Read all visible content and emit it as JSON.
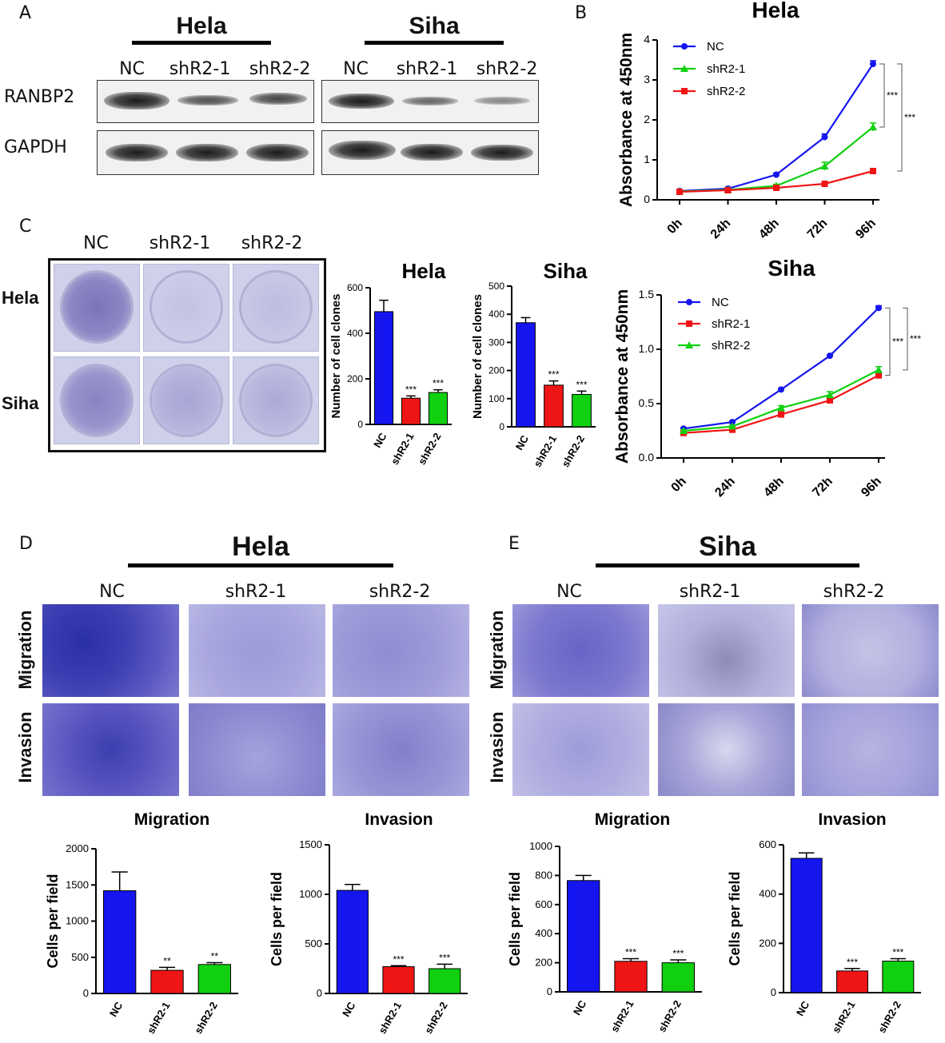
{
  "panel_letters": {
    "a": "A",
    "b": "B",
    "c": "C",
    "d": "D",
    "e": "E"
  },
  "blot": {
    "hela_title": "Hela",
    "siha_title": "Siha",
    "lanes_hela": [
      "NC",
      "shR2-1",
      "shR2-2"
    ],
    "lanes_siha": [
      "NC",
      "shR2-1",
      "shR2-2"
    ],
    "rows": [
      "RANBP2",
      "GAPDH"
    ]
  },
  "clone": {
    "cols": [
      "NC",
      "shR2-1",
      "shR2-2"
    ],
    "rows": [
      "Hela",
      "Siha"
    ]
  },
  "transwell": {
    "hela_title": "Hela",
    "siha_title": "Siha",
    "cols_hela": [
      "NC",
      "shR2-1",
      "shR2-2"
    ],
    "cols_siha": [
      "NC",
      "shR2-1",
      "shR2-2"
    ],
    "rows": [
      "Migration",
      "Invasion"
    ]
  },
  "colors": {
    "nc": "#1515f0",
    "red": "#f01515",
    "green": "#10d010"
  },
  "chart_data": [
    {
      "id": "hela-growth",
      "type": "line",
      "title": "Hela",
      "xlabel": "",
      "ylabel": "Absorbance at 450nm",
      "categories": [
        "0h",
        "24h",
        "48h",
        "72h",
        "96h"
      ],
      "ylim": [
        0,
        4
      ],
      "yticks": [
        0,
        1,
        2,
        3,
        4
      ],
      "series": [
        {
          "name": "NC",
          "color": "#1515f0",
          "marker": "circle",
          "values": [
            0.22,
            0.28,
            0.63,
            1.57,
            3.4
          ],
          "err": [
            0.03,
            0.03,
            0.04,
            0.08,
            0.08
          ]
        },
        {
          "name": "shR2-1",
          "color": "#10d010",
          "marker": "triangle",
          "values": [
            0.21,
            0.25,
            0.35,
            0.84,
            1.82
          ],
          "err": [
            0.03,
            0.03,
            0.04,
            0.1,
            0.1
          ]
        },
        {
          "name": "shR2-2",
          "color": "#f01515",
          "marker": "square",
          "values": [
            0.2,
            0.24,
            0.3,
            0.4,
            0.72
          ],
          "err": [
            0.03,
            0.03,
            0.03,
            0.04,
            0.05
          ]
        }
      ],
      "significance": [
        "***",
        "***"
      ]
    },
    {
      "id": "siha-growth",
      "type": "line",
      "title": "Siha",
      "xlabel": "",
      "ylabel": "Absorbance at 450nm",
      "categories": [
        "0h",
        "24h",
        "48h",
        "72h",
        "96h"
      ],
      "ylim": [
        0,
        1.5
      ],
      "yticks": [
        "0.0",
        "0.5",
        "1.0",
        "1.5"
      ],
      "series": [
        {
          "name": "NC",
          "color": "#1515f0",
          "marker": "circle",
          "values": [
            0.27,
            0.33,
            0.63,
            0.94,
            1.38
          ],
          "err": [
            0.01,
            0.01,
            0.01,
            0.01,
            0.02
          ]
        },
        {
          "name": "shR2-1",
          "color": "#f01515",
          "marker": "square",
          "values": [
            0.23,
            0.26,
            0.4,
            0.53,
            0.76
          ],
          "err": [
            0.01,
            0.01,
            0.02,
            0.02,
            0.03
          ]
        },
        {
          "name": "shR2-2",
          "color": "#10d010",
          "marker": "triangle",
          "values": [
            0.25,
            0.29,
            0.46,
            0.58,
            0.81
          ],
          "err": [
            0.01,
            0.01,
            0.02,
            0.03,
            0.03
          ]
        }
      ],
      "significance": [
        "***",
        "***"
      ]
    },
    {
      "id": "hela-clones",
      "type": "bar",
      "title": "Hela",
      "ylabel": "Number of cell clones",
      "categories": [
        "NC",
        "shR2-1",
        "shR2-2"
      ],
      "values": [
        495,
        115,
        140
      ],
      "err": [
        50,
        10,
        12
      ],
      "ylim": [
        0,
        600
      ],
      "yticks": [
        0,
        200,
        400,
        600
      ],
      "stars": [
        "",
        "***",
        "***"
      ]
    },
    {
      "id": "siha-clones",
      "type": "bar",
      "title": "Siha",
      "ylabel": "Number of cell clones",
      "categories": [
        "NC",
        "shR2-1",
        "shR2-2"
      ],
      "values": [
        370,
        148,
        115
      ],
      "err": [
        18,
        15,
        12
      ],
      "ylim": [
        0,
        500
      ],
      "yticks": [
        0,
        100,
        200,
        300,
        400,
        500
      ],
      "stars": [
        "",
        "***",
        "***"
      ]
    },
    {
      "id": "hela-migration",
      "type": "bar",
      "title": "Migration",
      "ylabel": "Cells per field",
      "categories": [
        "NC",
        "shR2-1",
        "shR2-2"
      ],
      "values": [
        1420,
        320,
        400
      ],
      "err": [
        260,
        40,
        25
      ],
      "ylim": [
        0,
        2000
      ],
      "yticks": [
        0,
        500,
        1000,
        1500,
        2000
      ],
      "stars": [
        "",
        "**",
        "**"
      ]
    },
    {
      "id": "hela-invasion",
      "type": "bar",
      "title": "Invasion",
      "ylabel": "Cells per field",
      "categories": [
        "NC",
        "shR2-1",
        "shR2-2"
      ],
      "values": [
        1040,
        270,
        250
      ],
      "err": [
        60,
        10,
        45
      ],
      "ylim": [
        0,
        1500
      ],
      "yticks": [
        0,
        500,
        1000,
        1500
      ],
      "stars": [
        "",
        "***",
        "***"
      ]
    },
    {
      "id": "siha-migration",
      "type": "bar",
      "title": "Migration",
      "ylabel": "Cells per field",
      "categories": [
        "NC",
        "shR2-1",
        "shR2-2"
      ],
      "values": [
        765,
        210,
        200
      ],
      "err": [
        35,
        18,
        20
      ],
      "ylim": [
        0,
        1000
      ],
      "yticks": [
        0,
        200,
        400,
        600,
        800,
        1000
      ],
      "stars": [
        "",
        "***",
        "***"
      ]
    },
    {
      "id": "siha-invasion",
      "type": "bar",
      "title": "Invasion",
      "ylabel": "Cells per field",
      "categories": [
        "NC",
        "shR2-1",
        "shR2-2"
      ],
      "values": [
        545,
        88,
        128
      ],
      "err": [
        22,
        10,
        10
      ],
      "ylim": [
        0,
        600
      ],
      "yticks": [
        0,
        200,
        400,
        600
      ],
      "stars": [
        "",
        "***",
        "***"
      ]
    }
  ]
}
